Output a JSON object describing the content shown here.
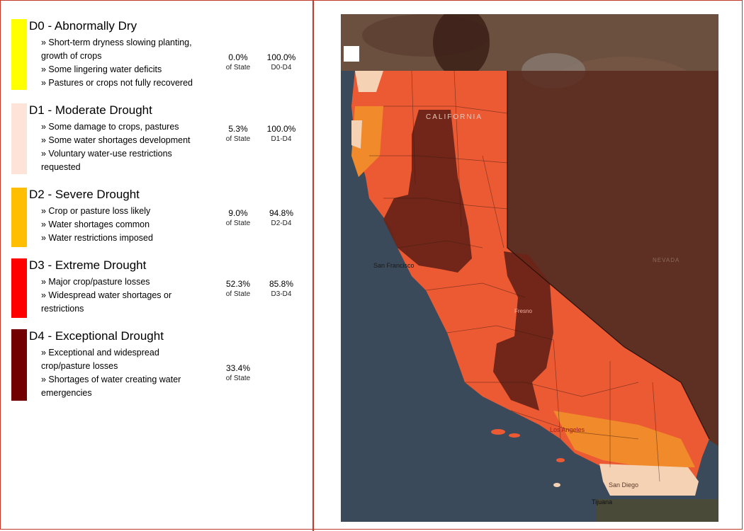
{
  "legend": {
    "categories": [
      {
        "code": "D0",
        "title": "D0 - Abnormally Dry",
        "color": "#ffff00",
        "impacts": [
          "» Short-term dryness slowing planting, growth of crops",
          "» Some lingering water deficits",
          "» Pastures or crops not fully recovered"
        ],
        "percent_of_state": "0.0%",
        "of_state_label": "of State",
        "cumulative_percent": "100.0%",
        "cumulative_label": "D0-D4"
      },
      {
        "code": "D1",
        "title": "D1 - Moderate Drought",
        "color": "#fde3d8",
        "impacts": [
          "» Some damage to crops, pastures",
          "» Some water shortages development",
          "» Voluntary water-use restrictions requested"
        ],
        "percent_of_state": "5.3%",
        "of_state_label": "of State",
        "cumulative_percent": "100.0%",
        "cumulative_label": "D1-D4"
      },
      {
        "code": "D2",
        "title": "D2 - Severe Drought",
        "color": "#ffbf00",
        "impacts": [
          "» Crop or pasture loss likely",
          "» Water shortages common",
          "» Water restrictions imposed"
        ],
        "percent_of_state": "9.0%",
        "of_state_label": "of State",
        "cumulative_percent": "94.8%",
        "cumulative_label": "D2-D4"
      },
      {
        "code": "D3",
        "title": "D3 - Extreme Drought",
        "color": "#ff0000",
        "impacts": [
          "» Major crop/pasture losses",
          "» Widespread water shortages or restrictions"
        ],
        "percent_of_state": "52.3%",
        "of_state_label": "of State",
        "cumulative_percent": "85.8%",
        "cumulative_label": "D3-D4"
      },
      {
        "code": "D4",
        "title": "D4 - Exceptional Drought",
        "color": "#730000",
        "impacts": [
          "» Exceptional and widespread crop/pasture losses",
          "» Shortages of water creating water emergencies"
        ],
        "percent_of_state": "33.4%",
        "of_state_label": "of State",
        "cumulative_percent": "",
        "cumulative_label": ""
      }
    ]
  },
  "map": {
    "labels": {
      "state": "CALIFORNIA",
      "city_sf": "San Francisco",
      "city_la": "Los Angeles",
      "city_sd": "San Diego",
      "city_tijuana": "Tijuana",
      "city_fresno": "Fresno",
      "region_nevada": "NEVADA"
    },
    "colors": {
      "ocean": "#3b4a5a",
      "land_outside": "#6b4f3f",
      "d1": "#f6d2b4",
      "d2": "#f08a2a",
      "d3": "#ec5a34",
      "d4": "#6a2418"
    }
  }
}
